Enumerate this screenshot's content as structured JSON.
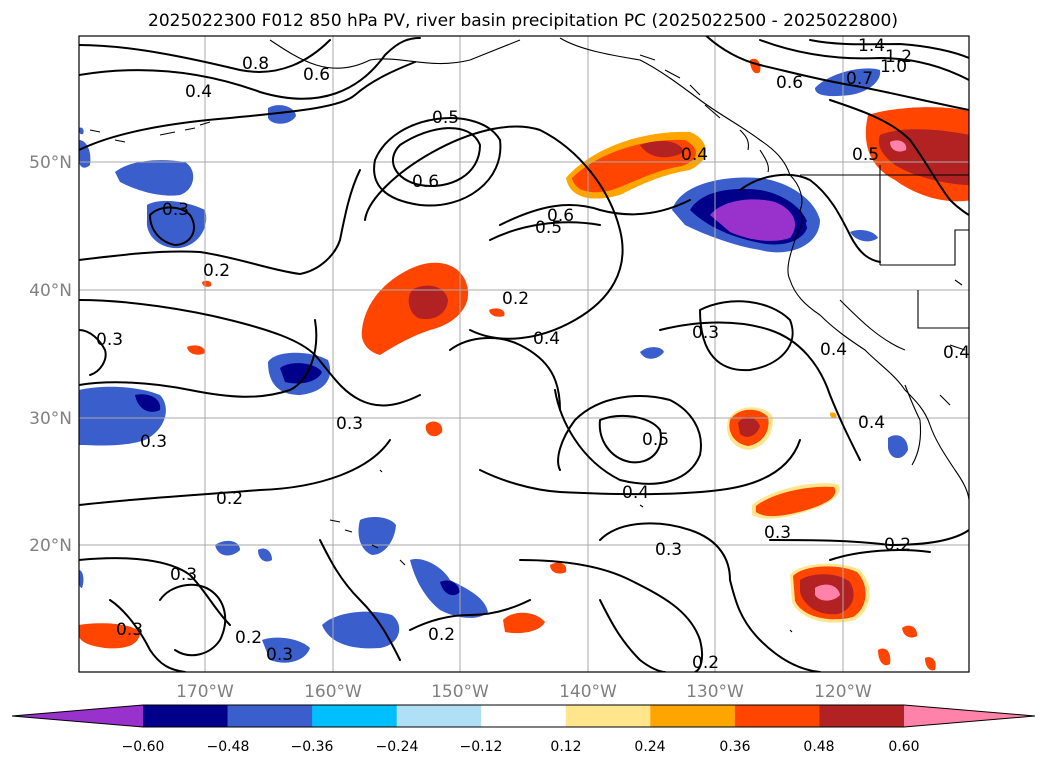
{
  "title": "2025022300 F012 850 hPa PV, river basin precipitation PC (2025022500 - 2025022800)",
  "lat_ticks": [
    "50°N",
    "40°N",
    "30°N",
    "20°N"
  ],
  "lon_ticks": [
    "170°W",
    "160°W",
    "150°W",
    "140°W",
    "130°W",
    "120°W"
  ],
  "colorbar": {
    "ticks": [
      "−0.60",
      "−0.48",
      "−0.36",
      "−0.24",
      "−0.12",
      "0.12",
      "0.24",
      "0.36",
      "0.48",
      "0.60"
    ],
    "colors": [
      "#9932cc",
      "#00008b",
      "#3a5fcd",
      "#00bfff",
      "#b0e0f6",
      "#ffffff",
      "#ffe68c",
      "#ffa500",
      "#ff4500",
      "#b22222",
      "#ff82ab"
    ]
  },
  "contour_labels": [
    "0.8",
    "0.6",
    "0.4",
    "1.4",
    "1.2",
    "1.0",
    "0.6",
    "0.7",
    "0.5",
    "0.6",
    "0.4",
    "0.5",
    "0.6",
    "0.5",
    "0.3",
    "0.2",
    "0.2",
    "0.3",
    "0.4",
    "0.3",
    "0.4",
    "0.4",
    "0.3",
    "0.3",
    "0.5",
    "0.4",
    "0.4",
    "0.2",
    "0.3",
    "0.3",
    "0.2",
    "0.3",
    "0.2",
    "0.2",
    "0.3",
    "0.2",
    "0.3"
  ]
}
